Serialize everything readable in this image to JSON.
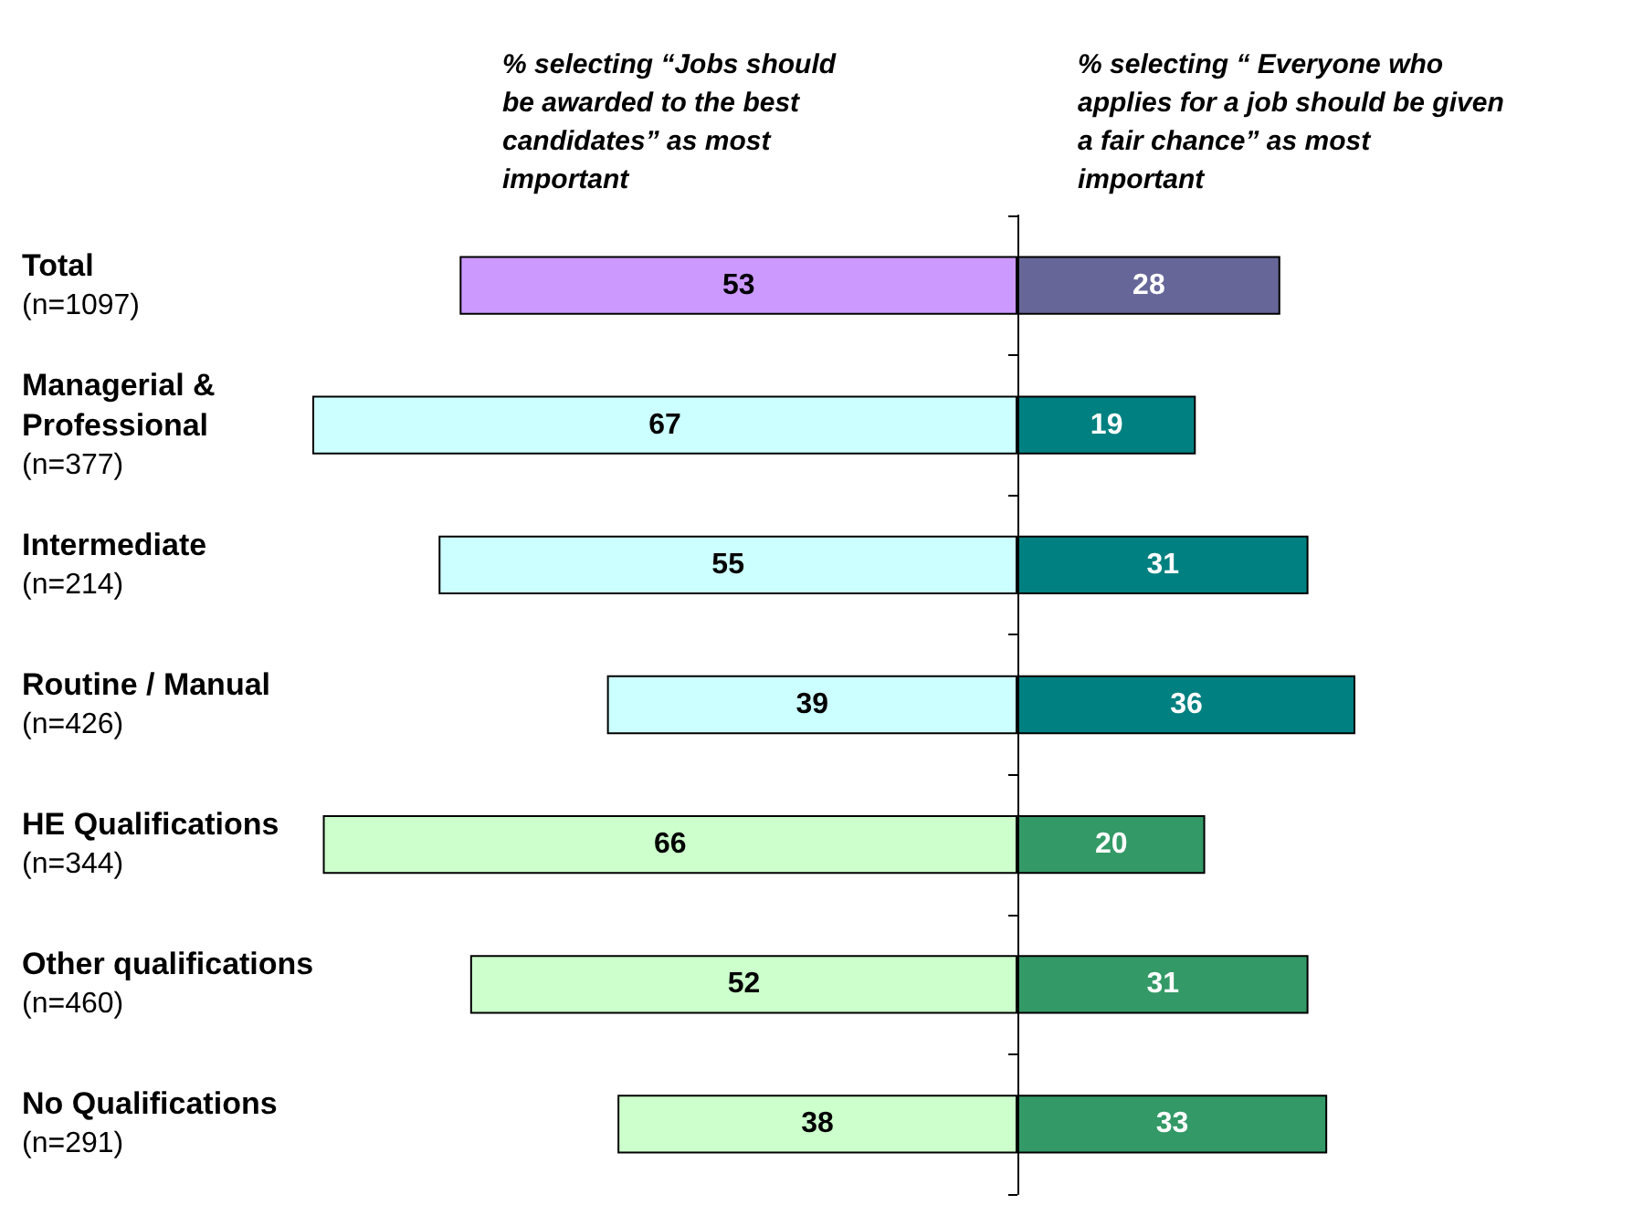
{
  "chart_data": [
    {
      "type": "bar",
      "orientation": "horizontal",
      "title": "% selecting “Jobs should be awarded to the best candidates” as most important",
      "categories": [
        "Total\n(n=1097)",
        "Managerial &\nProfessional\n(n=377)",
        "Intermediate\n(n=214)",
        "Routine / Manual\n(n=426)",
        "HE Qualifications\n(n=344)",
        "Other qualifications\n(n=460)",
        "No Qualifications\n(n=291)"
      ],
      "values": [
        53,
        67,
        55,
        39,
        66,
        52,
        38
      ],
      "colors": [
        "#cc99ff",
        "#ccffff",
        "#ccffff",
        "#ccffff",
        "#ccffcc",
        "#ccffcc",
        "#ccffcc"
      ],
      "xlim": [
        67,
        0
      ],
      "tick_labels": "y",
      "data_labels": true
    },
    {
      "type": "bar",
      "orientation": "horizontal",
      "title": "% selecting “ Everyone who applies for a job should be given a fair chance” as most important",
      "categories": [
        null,
        null,
        null,
        null,
        null,
        null,
        null
      ],
      "values": [
        28,
        19,
        31,
        36,
        20,
        31,
        33
      ],
      "colors": [
        "#666699",
        "#008080",
        "#008080",
        "#008080",
        "#339966",
        "#339966",
        "#339966"
      ],
      "xlim": [
        0,
        36
      ],
      "tick_labels": false,
      "data_labels": true
    }
  ]
}
